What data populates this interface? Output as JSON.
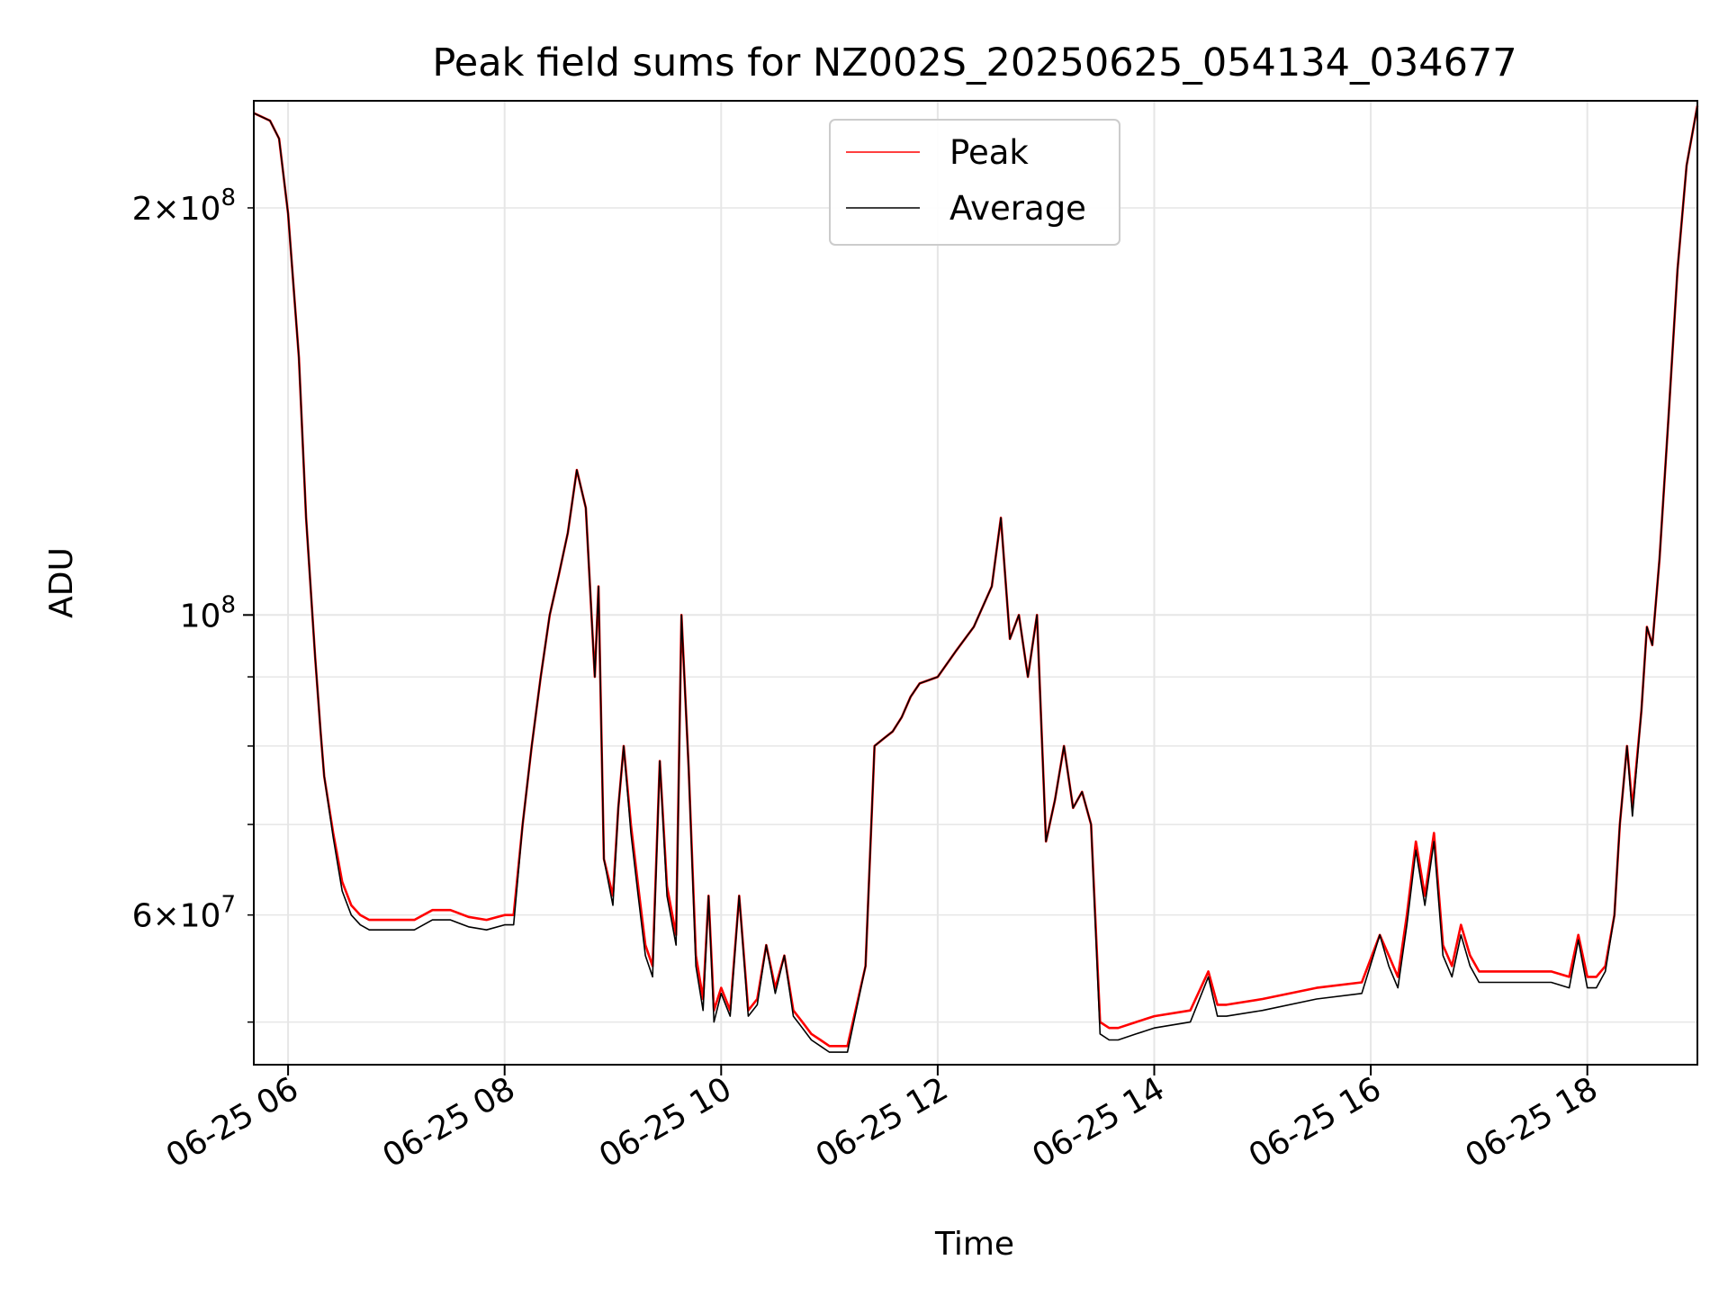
{
  "chart_data": {
    "type": "line",
    "title": "Peak field sums for NZ002S_20250625_054134_034677",
    "xlabel": "Time",
    "ylabel": "ADU",
    "xscale": "time",
    "yscale": "log",
    "xlim": [
      "06-25 05:41",
      "06-25 19:01"
    ],
    "ylim": [
      46500000,
      240000000
    ],
    "xticks": [
      {
        "label": "06-25 06",
        "value": "06-25 06:00"
      },
      {
        "label": "06-25 08",
        "value": "06-25 08:00"
      },
      {
        "label": "06-25 10",
        "value": "06-25 10:00"
      },
      {
        "label": "06-25 12",
        "value": "06-25 12:00"
      },
      {
        "label": "06-25 14",
        "value": "06-25 14:00"
      },
      {
        "label": "06-25 16",
        "value": "06-25 16:00"
      },
      {
        "label": "06-25 18",
        "value": "06-25 18:00"
      }
    ],
    "yticks_major": [
      {
        "value": 100000000,
        "base": "10",
        "exp": "8",
        "coef": ""
      }
    ],
    "yticks_minor": [
      {
        "value": 60000000,
        "coef": "6",
        "base": "10",
        "exp": "7"
      },
      {
        "value": 200000000,
        "coef": "2",
        "base": "10",
        "exp": "8"
      }
    ],
    "yticks_minor_unlabeled": [
      50000000,
      70000000,
      80000000,
      90000000
    ],
    "grid": true,
    "legend_position": "upper-center",
    "series": [
      {
        "name": "Peak",
        "color": "#ff0000",
        "x": [
          "06-25 05:41",
          "06-25 05:50",
          "06-25 05:55",
          "06-25 06:00",
          "06-25 06:06",
          "06-25 06:10",
          "06-25 06:15",
          "06-25 06:18",
          "06-25 06:20",
          "06-25 06:25",
          "06-25 06:30",
          "06-25 06:35",
          "06-25 06:40",
          "06-25 06:45",
          "06-25 06:50",
          "06-25 07:00",
          "06-25 07:10",
          "06-25 07:20",
          "06-25 07:30",
          "06-25 07:40",
          "06-25 07:50",
          "06-25 08:00",
          "06-25 08:05",
          "06-25 08:10",
          "06-25 08:15",
          "06-25 08:20",
          "06-25 08:25",
          "06-25 08:30",
          "06-25 08:35",
          "06-25 08:40",
          "06-25 08:45",
          "06-25 08:50",
          "06-25 08:52",
          "06-25 08:55",
          "06-25 09:00",
          "06-25 09:03",
          "06-25 09:06",
          "06-25 09:10",
          "06-25 09:14",
          "06-25 09:18",
          "06-25 09:22",
          "06-25 09:26",
          "06-25 09:30",
          "06-25 09:35",
          "06-25 09:38",
          "06-25 09:42",
          "06-25 09:46",
          "06-25 09:50",
          "06-25 09:53",
          "06-25 09:56",
          "06-25 10:00",
          "06-25 10:05",
          "06-25 10:10",
          "06-25 10:15",
          "06-25 10:20",
          "06-25 10:25",
          "06-25 10:30",
          "06-25 10:35",
          "06-25 10:40",
          "06-25 10:45",
          "06-25 10:50",
          "06-25 10:55",
          "06-25 11:00",
          "06-25 11:10",
          "06-25 11:20",
          "06-25 11:25",
          "06-25 11:30",
          "06-25 11:35",
          "06-25 11:40",
          "06-25 11:45",
          "06-25 11:50",
          "06-25 12:00",
          "06-25 12:10",
          "06-25 12:20",
          "06-25 12:30",
          "06-25 12:35",
          "06-25 12:40",
          "06-25 12:45",
          "06-25 12:50",
          "06-25 12:55",
          "06-25 13:00",
          "06-25 13:05",
          "06-25 13:10",
          "06-25 13:15",
          "06-25 13:20",
          "06-25 13:25",
          "06-25 13:30",
          "06-25 13:35",
          "06-25 13:40",
          "06-25 13:50",
          "06-25 14:00",
          "06-25 14:20",
          "06-25 14:30",
          "06-25 14:35",
          "06-25 14:40",
          "06-25 15:00",
          "06-25 15:30",
          "06-25 15:55",
          "06-25 16:05",
          "06-25 16:10",
          "06-25 16:15",
          "06-25 16:20",
          "06-25 16:25",
          "06-25 16:30",
          "06-25 16:35",
          "06-25 16:40",
          "06-25 16:45",
          "06-25 16:50",
          "06-25 16:55",
          "06-25 17:00",
          "06-25 17:10",
          "06-25 17:20",
          "06-25 17:30",
          "06-25 17:40",
          "06-25 17:50",
          "06-25 17:55",
          "06-25 18:00",
          "06-25 18:05",
          "06-25 18:10",
          "06-25 18:15",
          "06-25 18:18",
          "06-25 18:22",
          "06-25 18:25",
          "06-25 18:30",
          "06-25 18:33",
          "06-25 18:36",
          "06-25 18:40",
          "06-25 18:45",
          "06-25 18:50",
          "06-25 18:55",
          "06-25 19:01"
        ],
        "values": [
          235000000,
          232000000,
          225000000,
          198000000,
          155000000,
          118000000,
          93000000,
          82000000,
          76000000,
          69000000,
          63500000,
          61000000,
          60000000,
          59500000,
          59500000,
          59500000,
          59500000,
          60500000,
          60500000,
          59800000,
          59500000,
          60000000,
          60000000,
          70000000,
          80000000,
          90000000,
          100000000,
          107000000,
          115000000,
          128000000,
          120000000,
          90000000,
          105000000,
          66000000,
          62000000,
          72000000,
          80000000,
          70000000,
          63000000,
          57000000,
          55000000,
          78000000,
          63000000,
          58000000,
          100000000,
          77000000,
          56000000,
          52000000,
          62000000,
          51000000,
          53000000,
          51000000,
          62000000,
          51000000,
          52000000,
          57000000,
          53000000,
          56000000,
          51000000,
          50000000,
          49000000,
          48500000,
          48000000,
          48000000,
          55000000,
          80000000,
          81000000,
          82000000,
          84000000,
          87000000,
          89000000,
          90000000,
          94000000,
          98000000,
          105000000,
          118000000,
          96000000,
          100000000,
          90000000,
          100000000,
          68000000,
          73000000,
          80000000,
          72000000,
          74000000,
          70000000,
          50000000,
          49500000,
          49500000,
          50000000,
          50500000,
          51000000,
          54500000,
          51500000,
          51500000,
          52000000,
          53000000,
          53500000,
          58000000,
          56000000,
          54000000,
          60000000,
          68000000,
          62000000,
          69000000,
          57000000,
          55000000,
          59000000,
          56000000,
          54500000,
          54500000,
          54500000,
          54500000,
          54500000,
          54000000,
          58000000,
          54000000,
          54000000,
          55000000,
          60000000,
          70000000,
          80000000,
          72000000,
          85000000,
          98000000,
          95000000,
          110000000,
          140000000,
          180000000,
          215000000,
          238000000
        ]
      },
      {
        "name": "Average",
        "color": "#000000",
        "x": [
          "06-25 05:41",
          "06-25 05:50",
          "06-25 05:55",
          "06-25 06:00",
          "06-25 06:06",
          "06-25 06:10",
          "06-25 06:15",
          "06-25 06:18",
          "06-25 06:20",
          "06-25 06:25",
          "06-25 06:30",
          "06-25 06:35",
          "06-25 06:40",
          "06-25 06:45",
          "06-25 06:50",
          "06-25 07:00",
          "06-25 07:10",
          "06-25 07:20",
          "06-25 07:30",
          "06-25 07:40",
          "06-25 07:50",
          "06-25 08:00",
          "06-25 08:05",
          "06-25 08:10",
          "06-25 08:15",
          "06-25 08:20",
          "06-25 08:25",
          "06-25 08:30",
          "06-25 08:35",
          "06-25 08:40",
          "06-25 08:45",
          "06-25 08:50",
          "06-25 08:52",
          "06-25 08:55",
          "06-25 09:00",
          "06-25 09:03",
          "06-25 09:06",
          "06-25 09:10",
          "06-25 09:14",
          "06-25 09:18",
          "06-25 09:22",
          "06-25 09:26",
          "06-25 09:30",
          "06-25 09:35",
          "06-25 09:38",
          "06-25 09:42",
          "06-25 09:46",
          "06-25 09:50",
          "06-25 09:53",
          "06-25 09:56",
          "06-25 10:00",
          "06-25 10:05",
          "06-25 10:10",
          "06-25 10:15",
          "06-25 10:20",
          "06-25 10:25",
          "06-25 10:30",
          "06-25 10:35",
          "06-25 10:40",
          "06-25 10:45",
          "06-25 10:50",
          "06-25 10:55",
          "06-25 11:00",
          "06-25 11:10",
          "06-25 11:20",
          "06-25 11:25",
          "06-25 11:30",
          "06-25 11:35",
          "06-25 11:40",
          "06-25 11:45",
          "06-25 11:50",
          "06-25 12:00",
          "06-25 12:10",
          "06-25 12:20",
          "06-25 12:30",
          "06-25 12:35",
          "06-25 12:40",
          "06-25 12:45",
          "06-25 12:50",
          "06-25 12:55",
          "06-25 13:00",
          "06-25 13:05",
          "06-25 13:10",
          "06-25 13:15",
          "06-25 13:20",
          "06-25 13:25",
          "06-25 13:30",
          "06-25 13:35",
          "06-25 13:40",
          "06-25 13:50",
          "06-25 14:00",
          "06-25 14:20",
          "06-25 14:30",
          "06-25 14:35",
          "06-25 14:40",
          "06-25 15:00",
          "06-25 15:30",
          "06-25 15:55",
          "06-25 16:05",
          "06-25 16:10",
          "06-25 16:15",
          "06-25 16:20",
          "06-25 16:25",
          "06-25 16:30",
          "06-25 16:35",
          "06-25 16:40",
          "06-25 16:45",
          "06-25 16:50",
          "06-25 16:55",
          "06-25 17:00",
          "06-25 17:10",
          "06-25 17:20",
          "06-25 17:30",
          "06-25 17:40",
          "06-25 17:50",
          "06-25 17:55",
          "06-25 18:00",
          "06-25 18:05",
          "06-25 18:10",
          "06-25 18:15",
          "06-25 18:18",
          "06-25 18:22",
          "06-25 18:25",
          "06-25 18:30",
          "06-25 18:33",
          "06-25 18:36",
          "06-25 18:40",
          "06-25 18:45",
          "06-25 18:50",
          "06-25 18:55",
          "06-25 19:01"
        ],
        "values": [
          235000000,
          232000000,
          225000000,
          198000000,
          155000000,
          118000000,
          93000000,
          82000000,
          76000000,
          68500000,
          62500000,
          60000000,
          59000000,
          58500000,
          58500000,
          58500000,
          58500000,
          59500000,
          59500000,
          58800000,
          58500000,
          59000000,
          59000000,
          70000000,
          80000000,
          90000000,
          100000000,
          107000000,
          115000000,
          128000000,
          120000000,
          90000000,
          105000000,
          66000000,
          61000000,
          72000000,
          80000000,
          69000000,
          62000000,
          56000000,
          54000000,
          78000000,
          62000000,
          57000000,
          100000000,
          77000000,
          55000000,
          51000000,
          62000000,
          50000000,
          52500000,
          50500000,
          62000000,
          50500000,
          51500000,
          57000000,
          52500000,
          56000000,
          50500000,
          49500000,
          48500000,
          48000000,
          47500000,
          47500000,
          55000000,
          80000000,
          81000000,
          82000000,
          84000000,
          87000000,
          89000000,
          90000000,
          94000000,
          98000000,
          105000000,
          118000000,
          96000000,
          100000000,
          90000000,
          100000000,
          68000000,
          73000000,
          80000000,
          72000000,
          74000000,
          70000000,
          49000000,
          48500000,
          48500000,
          49000000,
          49500000,
          50000000,
          54000000,
          50500000,
          50500000,
          51000000,
          52000000,
          52500000,
          58000000,
          55000000,
          53000000,
          59000000,
          67000000,
          61000000,
          68000000,
          56000000,
          54000000,
          58000000,
          55000000,
          53500000,
          53500000,
          53500000,
          53500000,
          53500000,
          53000000,
          57500000,
          53000000,
          53000000,
          54500000,
          60000000,
          70000000,
          80000000,
          71000000,
          85000000,
          98000000,
          95000000,
          110000000,
          140000000,
          180000000,
          215000000,
          238000000
        ]
      }
    ]
  }
}
